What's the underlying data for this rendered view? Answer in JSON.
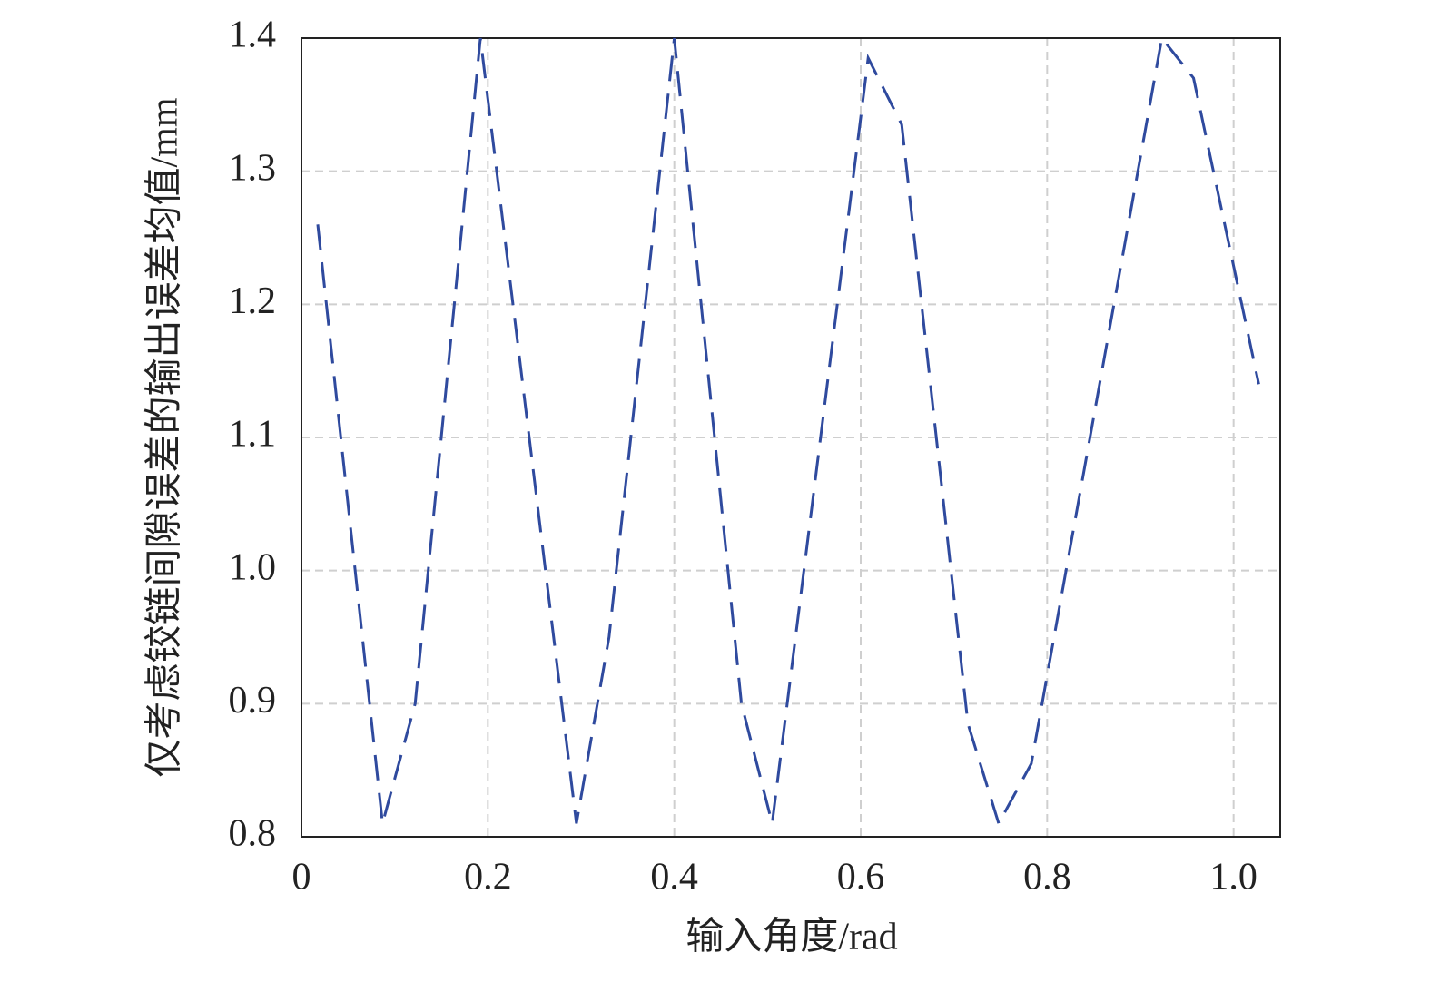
{
  "chart_data": {
    "type": "line",
    "xlabel": "输入角度/rad",
    "ylabel": "仅考虑铰链间隙误差的输出误差均值/mm",
    "x": [
      0.0175,
      0.087,
      0.122,
      0.192,
      0.295,
      0.33,
      0.4,
      0.472,
      0.505,
      0.608,
      0.644,
      0.715,
      0.748,
      0.783,
      0.923,
      0.957,
      1.027
    ],
    "series": [
      {
        "color": "#2f4a9e",
        "values": [
          1.26,
          0.81,
          0.9,
          1.4,
          0.81,
          0.95,
          1.4,
          0.9,
          0.81,
          1.385,
          1.335,
          0.885,
          0.81,
          0.855,
          1.4,
          1.37,
          1.14
        ]
      }
    ],
    "xlim": [
      0,
      1.05
    ],
    "ylim": [
      0.8,
      1.4
    ],
    "xticks": [
      0,
      0.2,
      0.4,
      0.6,
      0.8,
      {
        "value": 1,
        "label": "1.0"
      }
    ],
    "yticks": [
      0.8,
      0.9,
      {
        "value": 1,
        "label": "1.0"
      },
      1.1,
      1.2,
      1.3,
      1.4
    ],
    "grid": true
  }
}
